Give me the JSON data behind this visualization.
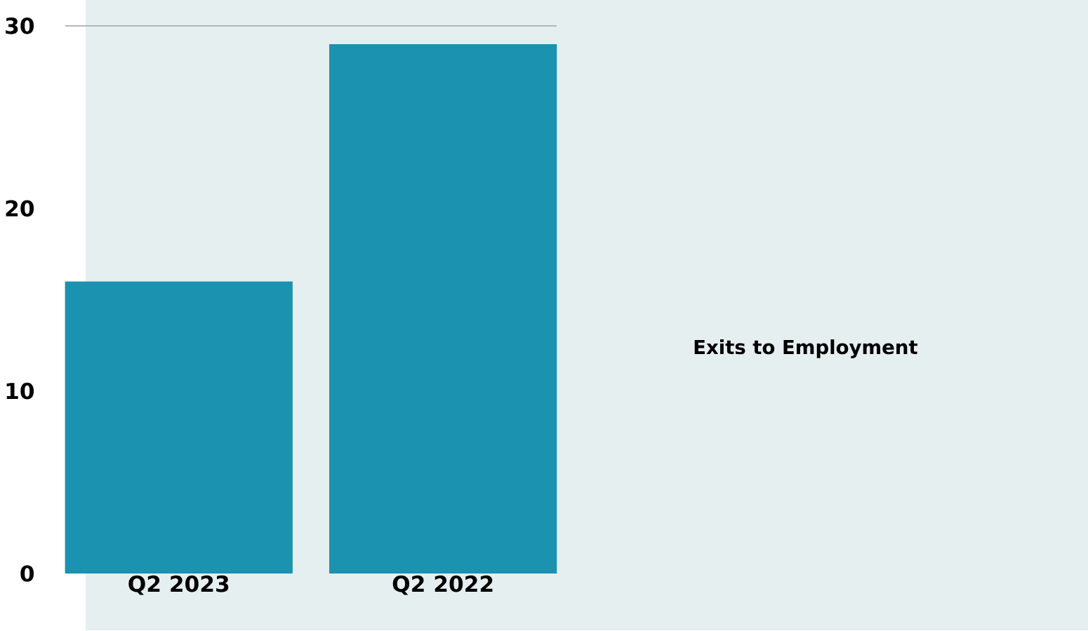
{
  "chart_data": {
    "type": "bar",
    "categories": [
      "Q2 2023",
      "Q2 2022"
    ],
    "values": [
      16,
      29
    ],
    "color": "#1a92b0",
    "ylim": [
      0,
      30
    ],
    "yticks": [
      0,
      10,
      20,
      30
    ],
    "ref_lines": [
      {
        "axis": "y",
        "value": 30,
        "color": "#a8b0b4"
      }
    ],
    "annotations": [
      "Exits to Employment"
    ]
  }
}
